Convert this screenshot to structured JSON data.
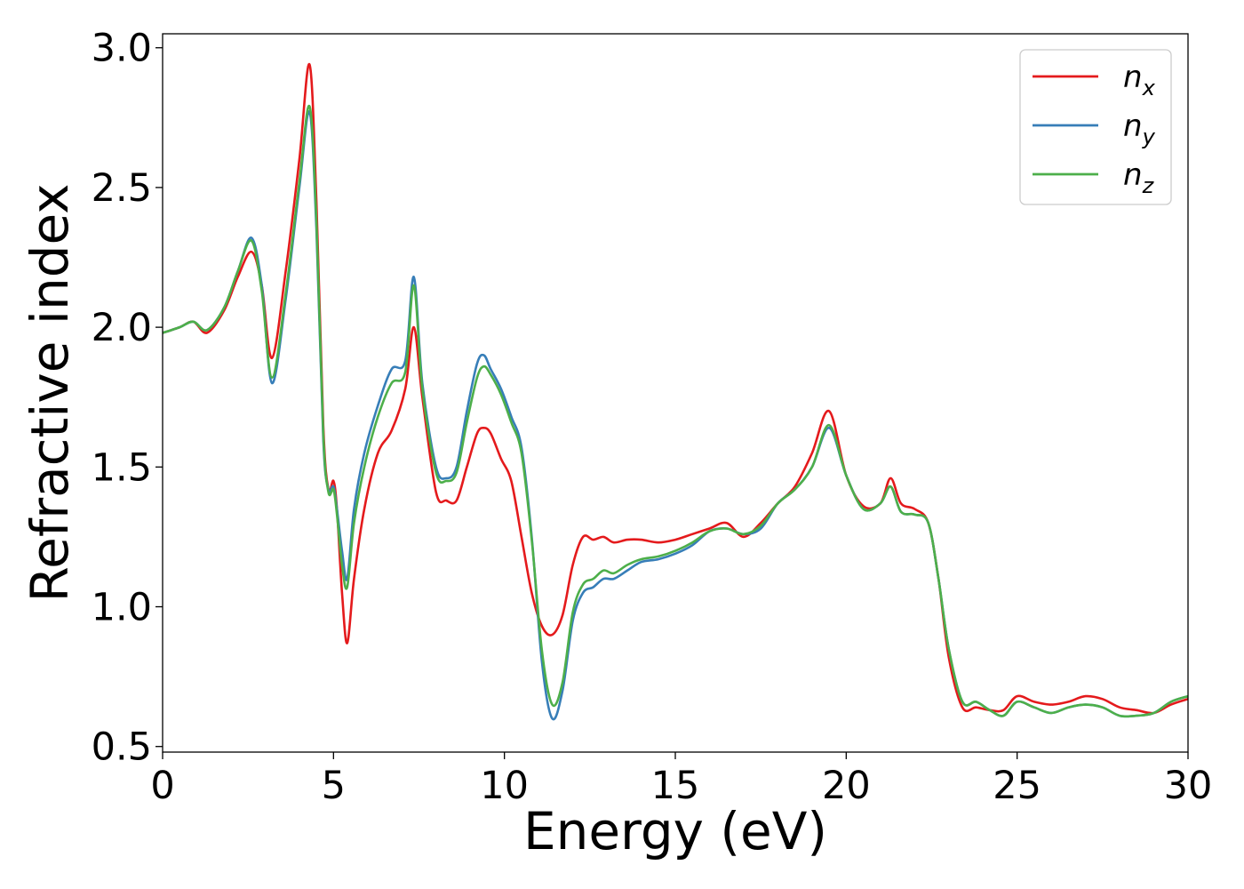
{
  "chart_data": {
    "type": "line",
    "xlabel": "Energy (eV)",
    "ylabel": "Refractive index",
    "xlim": [
      0,
      30
    ],
    "ylim": [
      0.48,
      3.05
    ],
    "xticks": [
      0,
      5,
      10,
      15,
      20,
      25,
      30
    ],
    "yticks": [
      0.5,
      1.0,
      1.5,
      2.0,
      2.5,
      3.0
    ],
    "xtick_labels": [
      "0",
      "5",
      "10",
      "15",
      "20",
      "25",
      "30"
    ],
    "ytick_labels": [
      "0.5",
      "1.0",
      "1.5",
      "2.0",
      "2.5",
      "3.0"
    ],
    "grid": false,
    "legend_position": "top-right",
    "series": [
      {
        "name": "n_x",
        "label_base": "n",
        "label_sub": "x",
        "color": "#e41a1c",
        "x": [
          0,
          0.5,
          0.9,
          1.3,
          1.8,
          2.2,
          2.6,
          2.9,
          3.2,
          3.6,
          4.0,
          4.3,
          4.5,
          4.7,
          4.85,
          5.0,
          5.1,
          5.25,
          5.4,
          5.6,
          5.9,
          6.3,
          6.7,
          7.1,
          7.35,
          7.6,
          8.0,
          8.3,
          8.6,
          8.9,
          9.2,
          9.4,
          9.6,
          9.9,
          10.2,
          10.5,
          10.8,
          11.1,
          11.4,
          11.7,
          12.0,
          12.3,
          12.6,
          12.9,
          13.2,
          13.6,
          14.0,
          14.5,
          15.0,
          15.5,
          16.0,
          16.5,
          17.0,
          17.5,
          18.0,
          18.5,
          19.0,
          19.5,
          20.0,
          20.5,
          21.0,
          21.3,
          21.6,
          22.0,
          22.4,
          22.7,
          23.0,
          23.4,
          23.8,
          24.2,
          24.6,
          25.0,
          25.5,
          26.0,
          26.5,
          27.0,
          27.5,
          28.0,
          28.5,
          29.0,
          29.5,
          30.0
        ],
        "y": [
          1.98,
          2.0,
          2.02,
          1.98,
          2.06,
          2.18,
          2.27,
          2.15,
          1.89,
          2.2,
          2.6,
          2.94,
          2.45,
          1.65,
          1.42,
          1.45,
          1.35,
          1.05,
          0.87,
          1.1,
          1.35,
          1.55,
          1.63,
          1.78,
          2.0,
          1.75,
          1.41,
          1.38,
          1.38,
          1.5,
          1.62,
          1.64,
          1.62,
          1.53,
          1.45,
          1.25,
          1.05,
          0.93,
          0.9,
          0.97,
          1.15,
          1.25,
          1.24,
          1.25,
          1.23,
          1.24,
          1.24,
          1.23,
          1.24,
          1.26,
          1.28,
          1.3,
          1.25,
          1.3,
          1.37,
          1.43,
          1.55,
          1.7,
          1.47,
          1.36,
          1.37,
          1.46,
          1.37,
          1.35,
          1.3,
          1.1,
          0.82,
          0.64,
          0.64,
          0.63,
          0.63,
          0.68,
          0.66,
          0.65,
          0.66,
          0.68,
          0.67,
          0.64,
          0.63,
          0.62,
          0.65,
          0.67
        ]
      },
      {
        "name": "n_y",
        "label_base": "n",
        "label_sub": "y",
        "color": "#377eb8",
        "x": [
          0,
          0.5,
          0.9,
          1.3,
          1.8,
          2.2,
          2.6,
          2.9,
          3.2,
          3.6,
          4.0,
          4.3,
          4.5,
          4.7,
          4.85,
          5.0,
          5.1,
          5.25,
          5.4,
          5.6,
          5.9,
          6.3,
          6.7,
          7.1,
          7.35,
          7.6,
          8.0,
          8.3,
          8.6,
          8.9,
          9.2,
          9.4,
          9.6,
          9.9,
          10.2,
          10.5,
          10.8,
          11.1,
          11.4,
          11.7,
          12.0,
          12.3,
          12.6,
          12.9,
          13.2,
          13.6,
          14.0,
          14.5,
          15.0,
          15.5,
          16.0,
          16.5,
          17.0,
          17.5,
          18.0,
          18.5,
          19.0,
          19.5,
          20.0,
          20.5,
          21.0,
          21.3,
          21.6,
          22.0,
          22.4,
          22.7,
          23.0,
          23.4,
          23.8,
          24.2,
          24.6,
          25.0,
          25.5,
          26.0,
          26.5,
          27.0,
          27.5,
          28.0,
          28.5,
          29.0,
          29.5,
          30.0
        ],
        "y": [
          1.98,
          2.0,
          2.02,
          1.99,
          2.07,
          2.2,
          2.32,
          2.15,
          1.8,
          2.1,
          2.5,
          2.77,
          2.35,
          1.6,
          1.42,
          1.43,
          1.35,
          1.2,
          1.1,
          1.35,
          1.55,
          1.72,
          1.85,
          1.88,
          2.18,
          1.8,
          1.5,
          1.46,
          1.5,
          1.7,
          1.87,
          1.9,
          1.85,
          1.78,
          1.68,
          1.57,
          1.25,
          0.8,
          0.6,
          0.7,
          0.95,
          1.05,
          1.07,
          1.1,
          1.1,
          1.13,
          1.16,
          1.17,
          1.19,
          1.22,
          1.27,
          1.28,
          1.26,
          1.28,
          1.37,
          1.42,
          1.5,
          1.64,
          1.47,
          1.35,
          1.37,
          1.43,
          1.34,
          1.33,
          1.3,
          1.1,
          0.85,
          0.66,
          0.66,
          0.63,
          0.61,
          0.66,
          0.64,
          0.62,
          0.64,
          0.65,
          0.64,
          0.61,
          0.61,
          0.62,
          0.66,
          0.68
        ]
      },
      {
        "name": "n_z",
        "label_base": "n",
        "label_sub": "z",
        "color": "#4daf4a",
        "x": [
          0,
          0.5,
          0.9,
          1.3,
          1.8,
          2.2,
          2.6,
          2.9,
          3.2,
          3.6,
          4.0,
          4.3,
          4.5,
          4.7,
          4.85,
          5.0,
          5.1,
          5.25,
          5.4,
          5.6,
          5.9,
          6.3,
          6.7,
          7.1,
          7.35,
          7.6,
          8.0,
          8.3,
          8.6,
          8.9,
          9.2,
          9.4,
          9.6,
          9.9,
          10.2,
          10.5,
          10.8,
          11.1,
          11.4,
          11.7,
          12.0,
          12.3,
          12.6,
          12.9,
          13.2,
          13.6,
          14.0,
          14.5,
          15.0,
          15.5,
          16.0,
          16.5,
          17.0,
          17.5,
          18.0,
          18.5,
          19.0,
          19.5,
          20.0,
          20.5,
          21.0,
          21.3,
          21.6,
          22.0,
          22.4,
          22.7,
          23.0,
          23.4,
          23.8,
          24.2,
          24.6,
          25.0,
          25.5,
          26.0,
          26.5,
          27.0,
          27.5,
          28.0,
          28.5,
          29.0,
          29.5,
          30.0
        ],
        "y": [
          1.98,
          2.0,
          2.02,
          1.99,
          2.07,
          2.2,
          2.31,
          2.13,
          1.82,
          2.12,
          2.52,
          2.79,
          2.38,
          1.62,
          1.41,
          1.42,
          1.33,
          1.15,
          1.07,
          1.3,
          1.5,
          1.68,
          1.8,
          1.84,
          2.15,
          1.78,
          1.48,
          1.45,
          1.48,
          1.66,
          1.82,
          1.86,
          1.83,
          1.76,
          1.66,
          1.55,
          1.24,
          0.84,
          0.65,
          0.73,
          0.98,
          1.08,
          1.1,
          1.13,
          1.12,
          1.15,
          1.17,
          1.18,
          1.2,
          1.23,
          1.27,
          1.28,
          1.26,
          1.29,
          1.37,
          1.42,
          1.5,
          1.65,
          1.47,
          1.35,
          1.37,
          1.43,
          1.34,
          1.33,
          1.3,
          1.1,
          0.85,
          0.66,
          0.66,
          0.63,
          0.61,
          0.66,
          0.64,
          0.62,
          0.64,
          0.65,
          0.64,
          0.61,
          0.61,
          0.62,
          0.66,
          0.68
        ]
      }
    ]
  }
}
